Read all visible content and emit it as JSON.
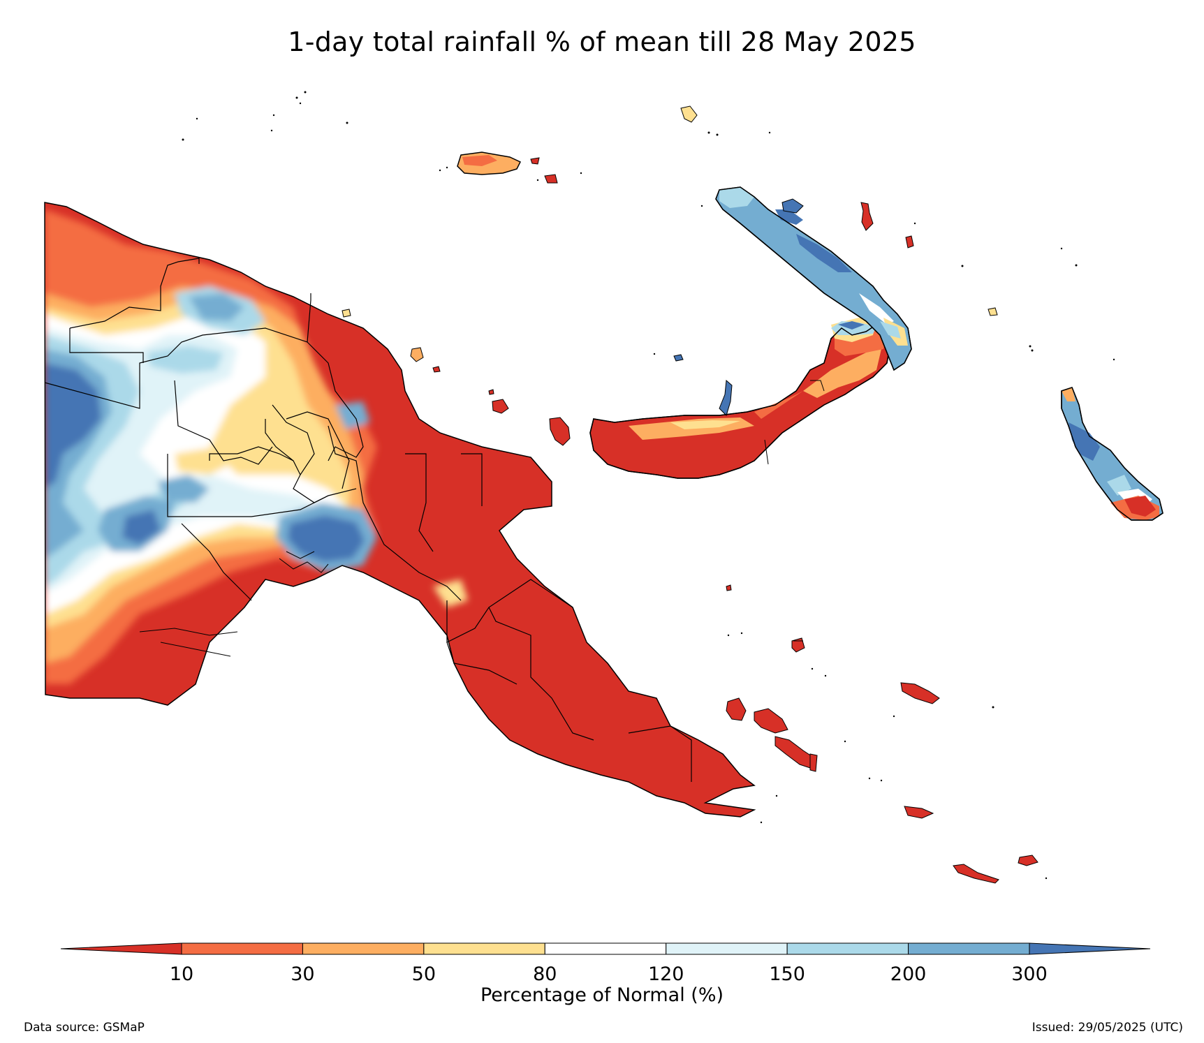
{
  "title": "1-day total rainfall % of mean till 28 May 2025",
  "colorbar": {
    "label": "Percentage of Normal (%)",
    "ticks": [
      "10",
      "30",
      "50",
      "80",
      "120",
      "150",
      "200",
      "300"
    ],
    "colors": [
      "#d73027",
      "#f46d43",
      "#fdae61",
      "#fee090",
      "#ffffff",
      "#e0f3f8",
      "#abd9e9",
      "#74add1",
      "#4575b4"
    ]
  },
  "footer": {
    "source": "Data source: GSMaP",
    "issued": "Issued: 29/05/2025 (UTC)"
  }
}
